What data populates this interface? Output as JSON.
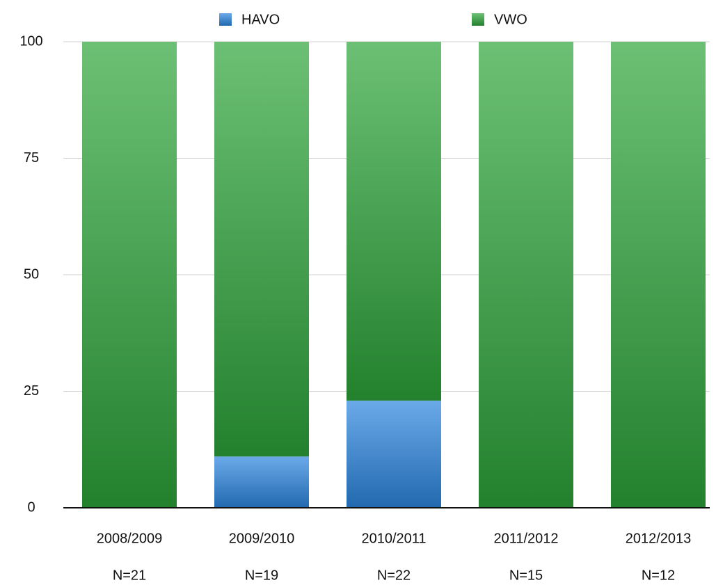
{
  "chart_data": {
    "type": "stacked_bar",
    "categories": [
      "2008/2009",
      "2009/2010",
      "2010/2011",
      "2011/2012",
      "2012/2013"
    ],
    "sample_sizes": [
      "N=21",
      "N=19",
      "N=22",
      "N=15",
      "N=12"
    ],
    "series": [
      {
        "name": "HAVO",
        "color": "#2b86e0",
        "values": [
          0,
          11,
          23,
          0,
          0
        ]
      },
      {
        "name": "VWO",
        "color": "#2da53a",
        "values": [
          100,
          89,
          77,
          100,
          100
        ]
      }
    ],
    "ylim": [
      0,
      100
    ],
    "yticks": [
      0,
      25,
      50,
      75,
      100
    ],
    "grid": true,
    "legend": "top"
  }
}
